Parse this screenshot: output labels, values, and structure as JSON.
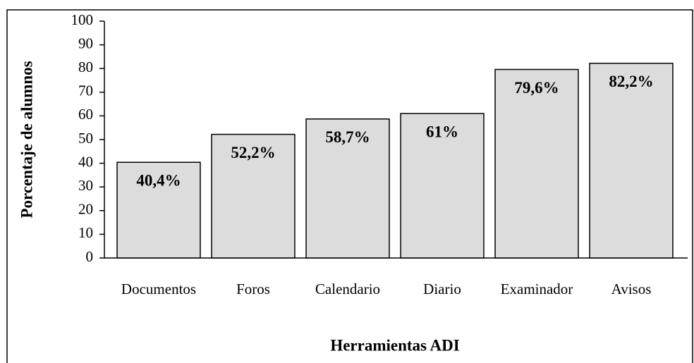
{
  "chart_data": {
    "type": "bar",
    "x_label": "Herramientas ADI",
    "y_label": "Porcentaje de alumnos",
    "categories": [
      "Documentos",
      "Foros",
      "Calendario",
      "Diario",
      "Examinador",
      "Avisos"
    ],
    "values": [
      40.4,
      52.2,
      58.7,
      61,
      79.6,
      82.2
    ],
    "value_labels": [
      "40,4%",
      "52,2%",
      "58,7%",
      "61%",
      "79,6%",
      "82,2%"
    ],
    "color": "#dcdcdc",
    "ylim": [
      0,
      100
    ],
    "yticks": [
      0,
      10,
      20,
      30,
      40,
      50,
      60,
      70,
      80,
      90,
      100
    ],
    "grid": false
  }
}
